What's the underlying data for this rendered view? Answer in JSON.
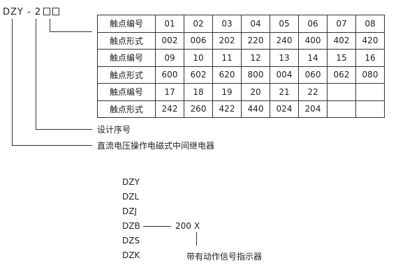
{
  "model_code": {
    "prefix": "DZY - 2"
  },
  "table": {
    "rows": [
      {
        "label": "触点编号",
        "cells": [
          "01",
          "02",
          "03",
          "04",
          "05",
          "06",
          "07",
          "08"
        ]
      },
      {
        "label": "触点形式",
        "cells": [
          "002",
          "006",
          "202",
          "220",
          "240",
          "400",
          "402",
          "420"
        ]
      },
      {
        "label": "触点编号",
        "cells": [
          "09",
          "10",
          "11",
          "12",
          "13",
          "14",
          "15",
          "16"
        ]
      },
      {
        "label": "触点形式",
        "cells": [
          "600",
          "602",
          "620",
          "800",
          "004",
          "060",
          "062",
          "080"
        ]
      },
      {
        "label": "触点编号",
        "cells": [
          "17",
          "18",
          "19",
          "20",
          "21",
          "22",
          "",
          ""
        ]
      },
      {
        "label": "触点形式",
        "cells": [
          "242",
          "260",
          "422",
          "440",
          "024",
          "204",
          "",
          ""
        ]
      }
    ]
  },
  "labels": {
    "design_serial": "设计序号",
    "relay_type": "直流电压操作电磁式中间继电器"
  },
  "series_list": [
    "DZY",
    "DZL",
    "DZJ",
    "DZB",
    "DZS",
    "DZK"
  ],
  "suffix": {
    "code": "200",
    "option": "X",
    "option_label": "带有动作信号指示器"
  }
}
